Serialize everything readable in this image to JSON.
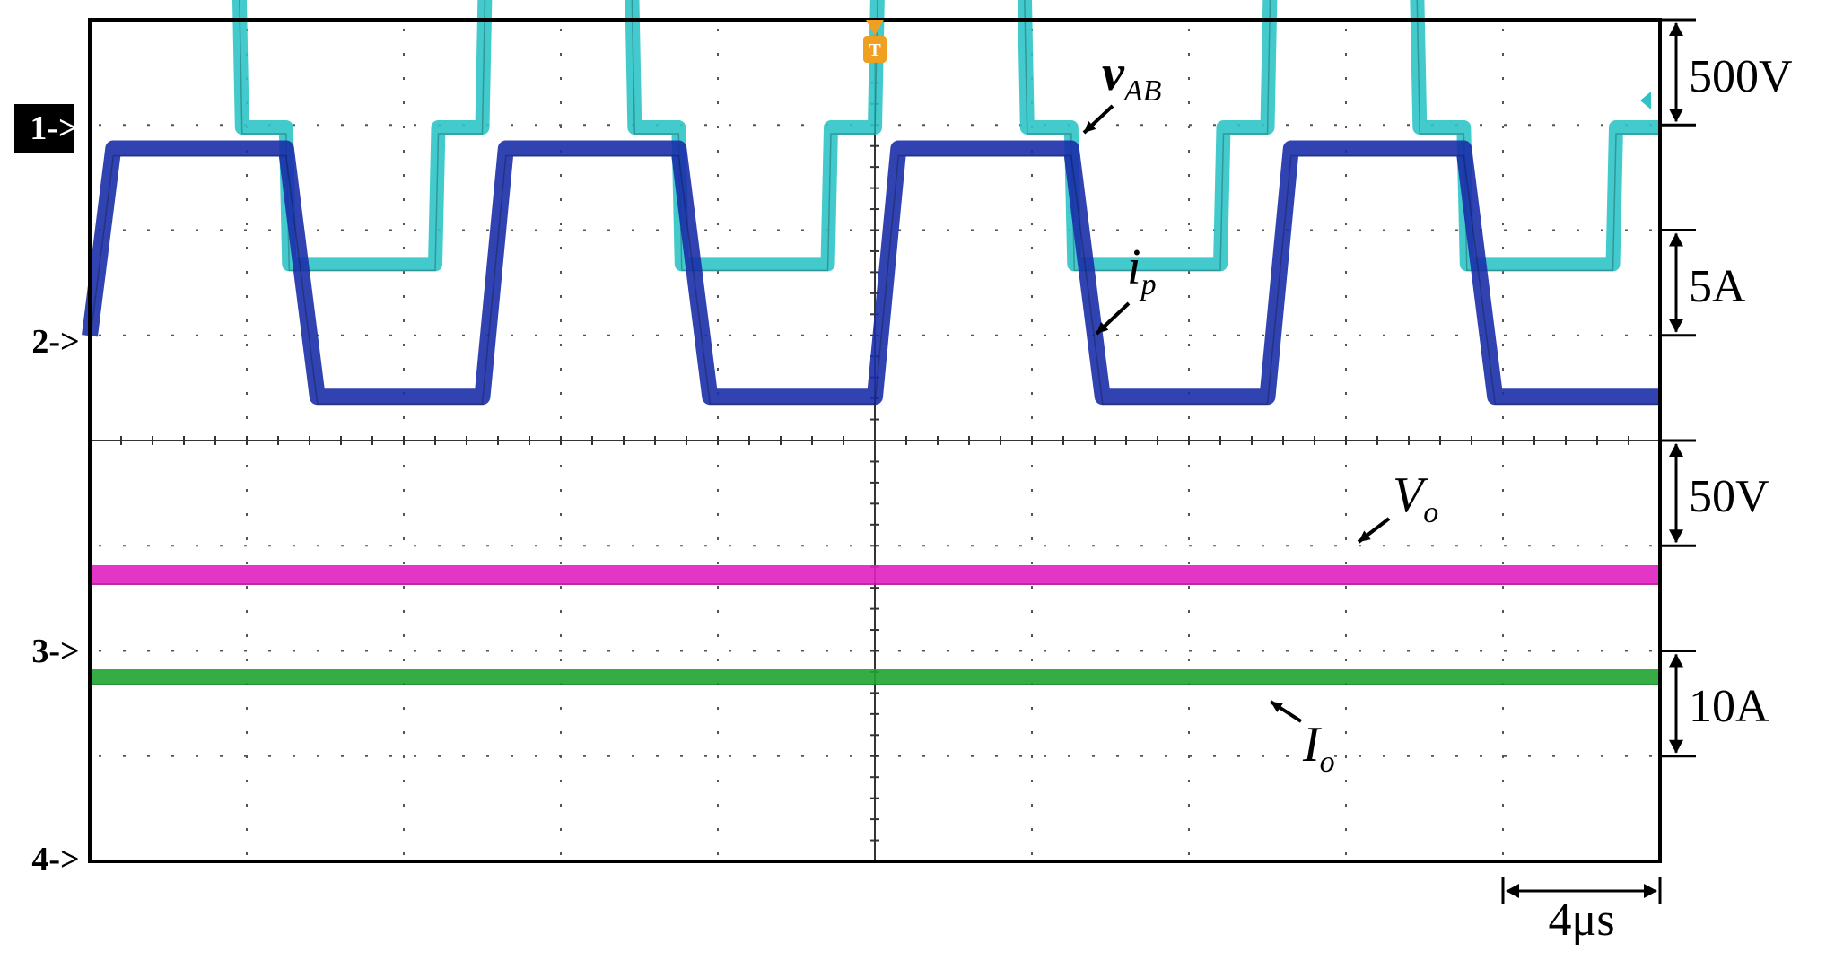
{
  "chart_data": {
    "type": "line",
    "title": "",
    "grid": true,
    "divisions": {
      "x": 10,
      "y": 8
    },
    "colors": {
      "background": "#ffffff",
      "frame": "#000000",
      "grid": "#555555",
      "v_AB": "#2ec4c6",
      "i_p": "#1a2fa8",
      "V_o": "#e020c0",
      "I_o": "#1fa330",
      "trigger": "#f0a020"
    },
    "channel_markers": [
      {
        "label": "1->",
        "inverted": true
      },
      {
        "label": "2->",
        "inverted": false
      },
      {
        "label": "3->",
        "inverted": false
      },
      {
        "label": "4->",
        "inverted": false
      }
    ],
    "scales": [
      {
        "label": "500V"
      },
      {
        "label": "5A"
      },
      {
        "label": "50V"
      },
      {
        "label": "10A"
      }
    ],
    "time_scale": {
      "label": "4μs",
      "divisions": 1
    },
    "trigger": {
      "label": "T",
      "x_div": 5
    },
    "series": [
      {
        "name": "v_AB",
        "label_main": "v",
        "label_sub": "AB",
        "italic": true,
        "bold": true,
        "unit": "V",
        "x_div": [
          0,
          0.95,
          0.97,
          1.25,
          1.27,
          2.2,
          2.22,
          2.5,
          2.52,
          3.45,
          3.47,
          3.75,
          3.77,
          4.7,
          4.72,
          5.0,
          5.02,
          5.95,
          5.97,
          6.25,
          6.27,
          7.2,
          7.22,
          7.5,
          7.52,
          8.45,
          8.47,
          8.75,
          8.77,
          9.7,
          9.72,
          10.0
        ],
        "values": [
          750,
          750,
          0,
          0,
          -650,
          -650,
          0,
          0,
          750,
          750,
          0,
          0,
          -650,
          -650,
          0,
          0,
          750,
          750,
          0,
          0,
          -650,
          -650,
          0,
          0,
          750,
          750,
          0,
          0,
          -650,
          -650,
          0,
          0
        ]
      },
      {
        "name": "i_p",
        "label_main": "i",
        "label_sub": "p",
        "italic": true,
        "bold": false,
        "unit": "A",
        "x_div": [
          0,
          0.15,
          1.25,
          1.45,
          2.5,
          2.65,
          3.75,
          3.95,
          5.0,
          5.15,
          6.25,
          6.45,
          7.5,
          7.65,
          8.75,
          8.95,
          10.0
        ],
        "values": [
          -1.5,
          7.4,
          7.4,
          -4.4,
          -4.4,
          7.4,
          7.4,
          -4.4,
          -4.4,
          7.4,
          7.4,
          -4.4,
          -4.4,
          7.4,
          7.4,
          -4.4,
          -4.4
        ]
      },
      {
        "name": "V_o",
        "label_main": "V",
        "label_sub": "o",
        "italic": true,
        "bold": false,
        "unit": "V",
        "x_div": [
          0,
          10
        ],
        "values": [
          75,
          75
        ]
      },
      {
        "name": "I_o",
        "label_main": "I",
        "label_sub": "o",
        "italic": true,
        "bold": false,
        "unit": "A",
        "x_div": [
          0,
          10
        ],
        "values": [
          -2,
          -2
        ]
      }
    ]
  }
}
